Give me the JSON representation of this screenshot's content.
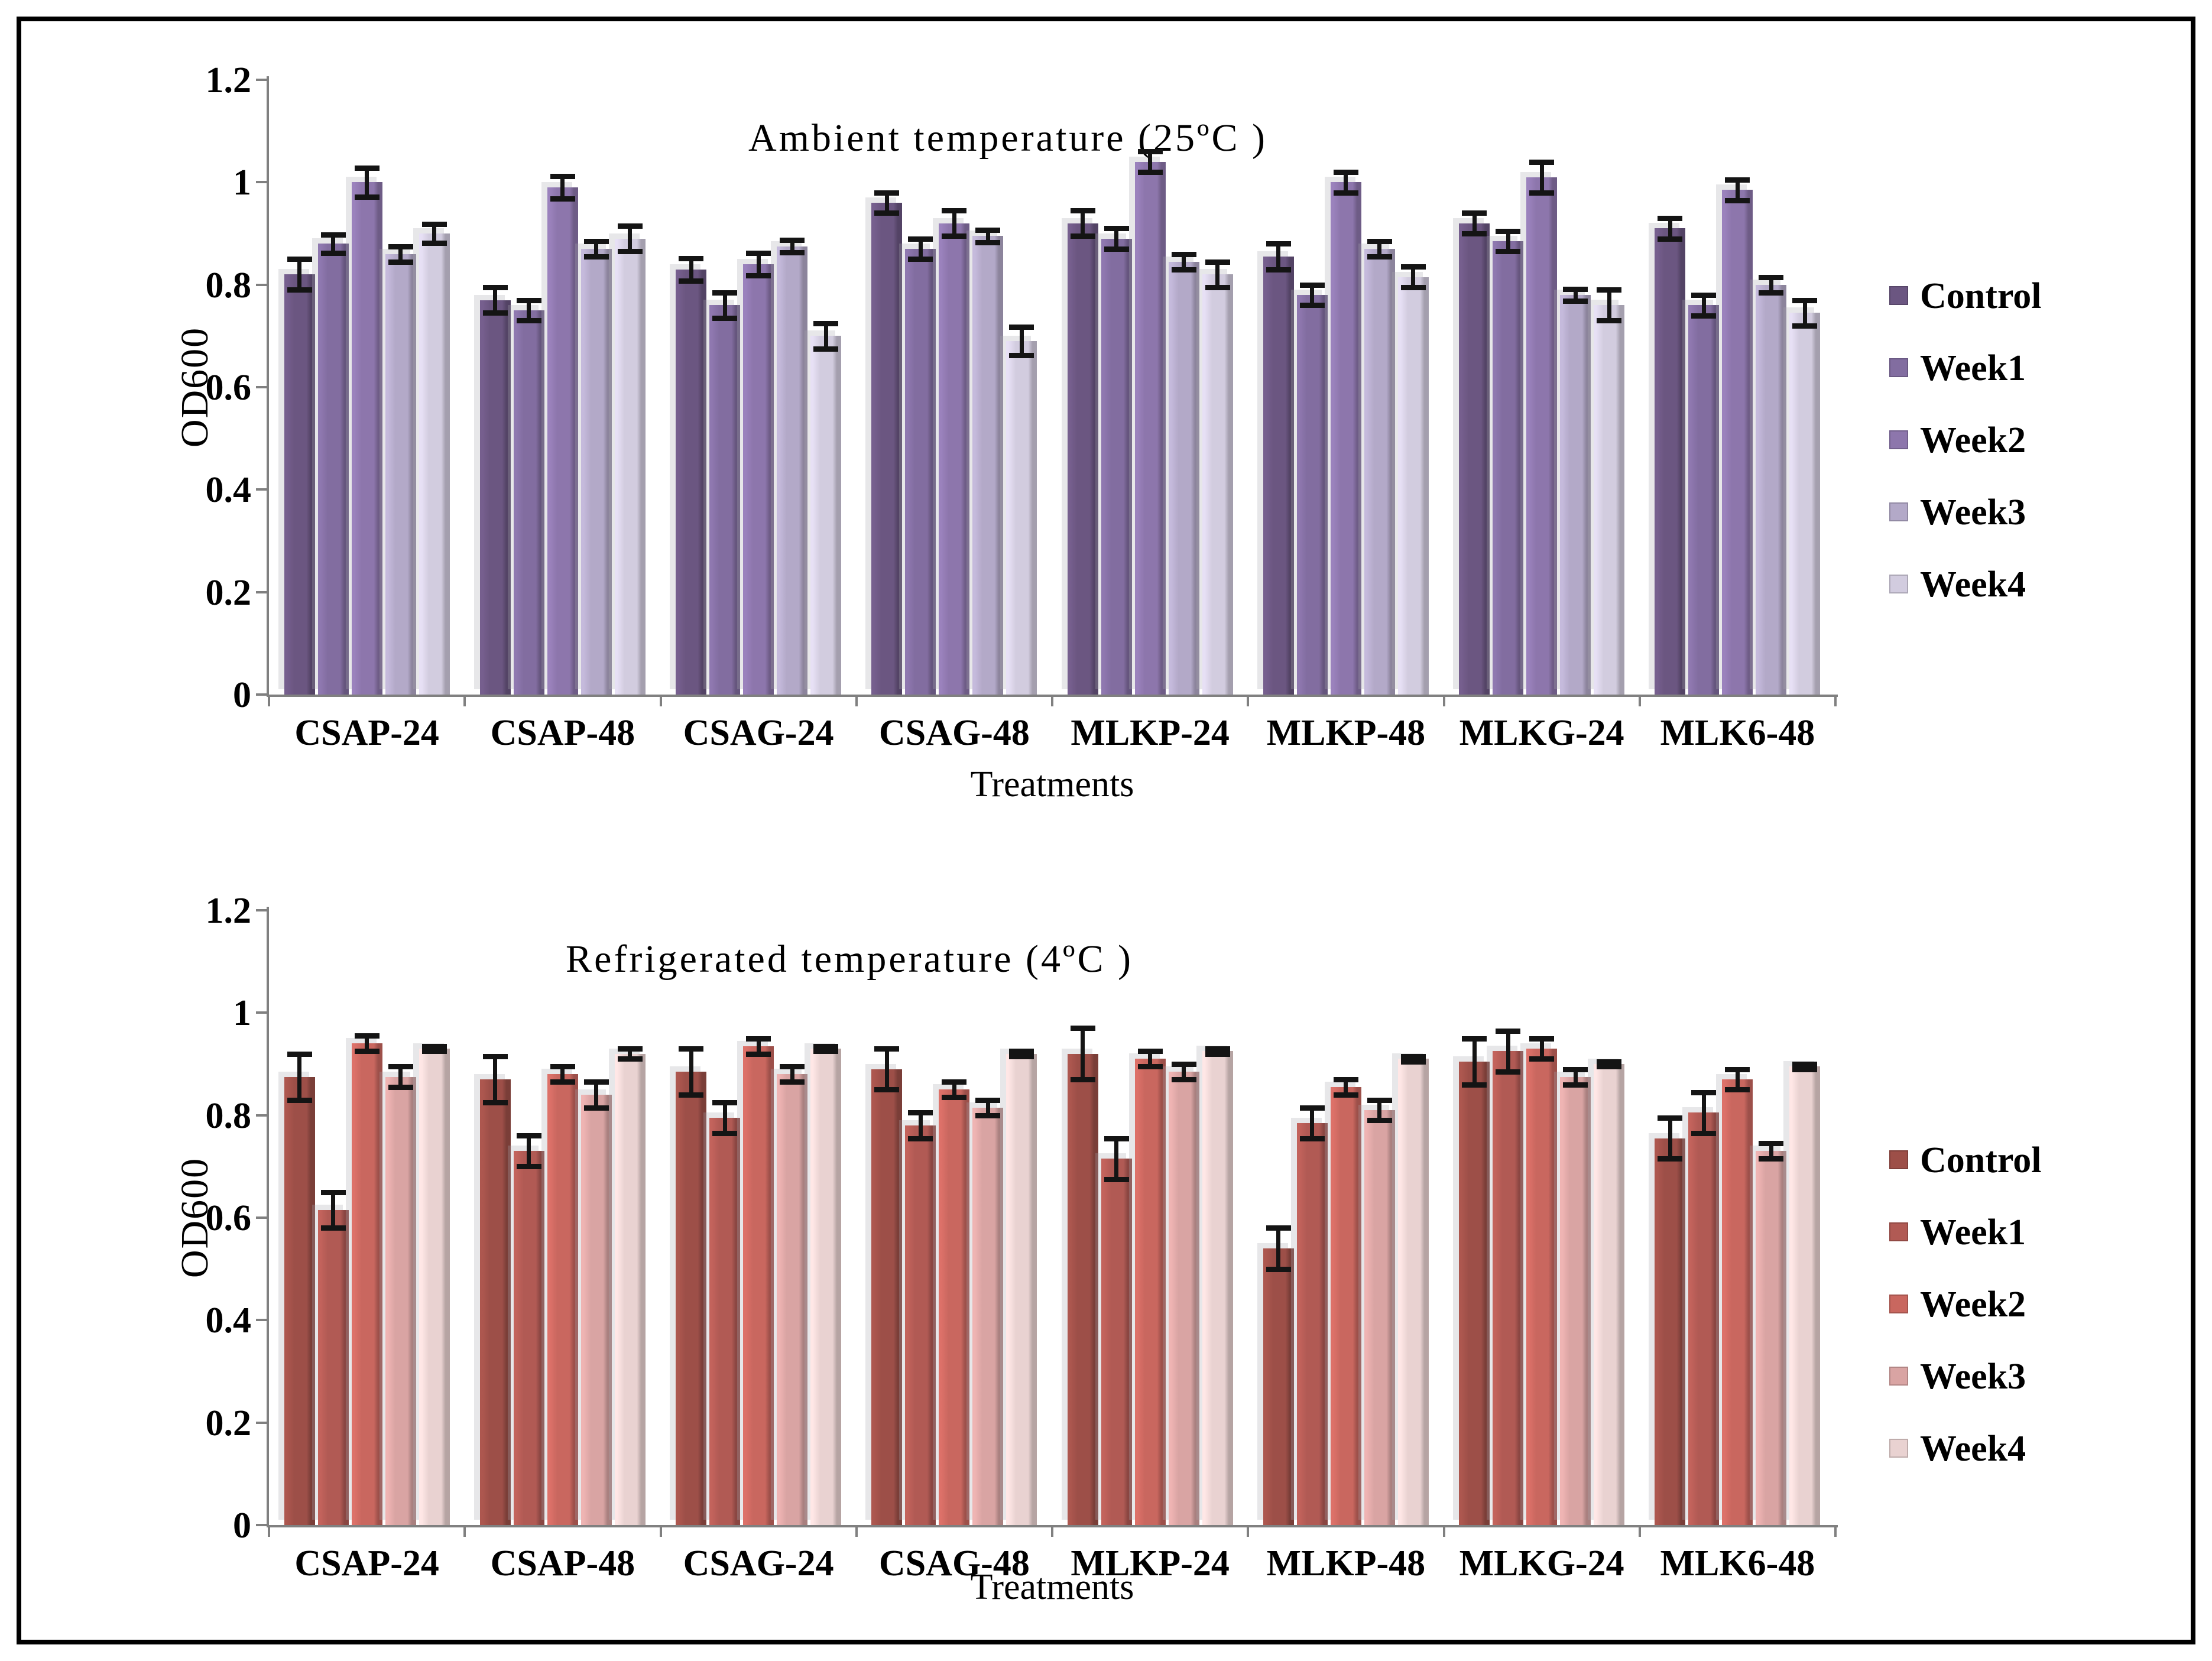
{
  "page": {
    "background": "#ffffff",
    "border_color": "#000000"
  },
  "chart_data": [
    {
      "type": "bar",
      "title": "Ambient temperature (25ºC )",
      "xlabel": "Treatments",
      "ylabel": "OD600",
      "ylim": [
        0,
        1.2
      ],
      "yticks": [
        "0",
        "0.2",
        "0.4",
        "0.6",
        "0.8",
        "1",
        "1.2"
      ],
      "ytick_values": [
        0,
        0.2,
        0.4,
        0.6,
        0.8,
        1,
        1.2
      ],
      "grid": false,
      "legend_position": "right",
      "axis_color": "#808080",
      "error_bar_color": "#141414",
      "categories": [
        "CSAP-24",
        "CSAP-48",
        "CSAG-24",
        "CSAG-48",
        "MLKP-24",
        "MLKP-48",
        "MLKG-24",
        "MLK6-48"
      ],
      "series": [
        {
          "name": "Control",
          "color": "#6b5681",
          "values": [
            0.82,
            0.77,
            0.83,
            0.96,
            0.92,
            0.855,
            0.92,
            0.91
          ],
          "errors": [
            0.03,
            0.025,
            0.022,
            0.02,
            0.025,
            0.025,
            0.02,
            0.02
          ]
        },
        {
          "name": "Week1",
          "color": "#826da0",
          "values": [
            0.88,
            0.75,
            0.76,
            0.87,
            0.89,
            0.78,
            0.885,
            0.76
          ],
          "errors": [
            0.018,
            0.02,
            0.025,
            0.02,
            0.02,
            0.02,
            0.02,
            0.02
          ]
        },
        {
          "name": "Week2",
          "color": "#8d76ac",
          "values": [
            1.0,
            0.99,
            0.84,
            0.92,
            1.04,
            1.0,
            1.01,
            0.985
          ],
          "errors": [
            0.028,
            0.022,
            0.022,
            0.025,
            0.02,
            0.02,
            0.03,
            0.02
          ]
        },
        {
          "name": "Week3",
          "color": "#b3a9c8",
          "values": [
            0.86,
            0.87,
            0.875,
            0.895,
            0.845,
            0.87,
            0.78,
            0.8
          ],
          "errors": [
            0.015,
            0.015,
            0.012,
            0.012,
            0.015,
            0.015,
            0.012,
            0.015
          ]
        },
        {
          "name": "Week4",
          "color": "#d2ccdf",
          "values": [
            0.9,
            0.89,
            0.7,
            0.69,
            0.82,
            0.815,
            0.76,
            0.745
          ],
          "errors": [
            0.018,
            0.025,
            0.025,
            0.028,
            0.025,
            0.02,
            0.03,
            0.025
          ]
        }
      ]
    },
    {
      "type": "bar",
      "title": "Refrigerated temperature (4ºC )",
      "xlabel": "Treatments",
      "ylabel": "OD600",
      "ylim": [
        0,
        1.2
      ],
      "yticks": [
        "0",
        "0.2",
        "0.4",
        "0.6",
        "0.8",
        "1",
        "1.2"
      ],
      "ytick_values": [
        0,
        0.2,
        0.4,
        0.6,
        0.8,
        1,
        1.2
      ],
      "grid": false,
      "legend_position": "right",
      "axis_color": "#808080",
      "error_bar_color": "#141414",
      "categories": [
        "CSAP-24",
        "CSAP-48",
        "CSAG-24",
        "CSAG-48",
        "MLKP-24",
        "MLKP-48",
        "MLKG-24",
        "MLK6-48"
      ],
      "series": [
        {
          "name": "Control",
          "color": "#9d4f48",
          "values": [
            0.875,
            0.87,
            0.885,
            0.89,
            0.92,
            0.54,
            0.905,
            0.755
          ],
          "errors": [
            0.045,
            0.045,
            0.045,
            0.04,
            0.05,
            0.04,
            0.045,
            0.04
          ]
        },
        {
          "name": "Week1",
          "color": "#b15a54",
          "values": [
            0.615,
            0.73,
            0.795,
            0.78,
            0.715,
            0.785,
            0.925,
            0.805
          ],
          "errors": [
            0.035,
            0.03,
            0.03,
            0.025,
            0.04,
            0.03,
            0.04,
            0.04
          ]
        },
        {
          "name": "Week2",
          "color": "#c9675f",
          "values": [
            0.94,
            0.88,
            0.935,
            0.85,
            0.91,
            0.855,
            0.93,
            0.87
          ],
          "errors": [
            0.015,
            0.015,
            0.015,
            0.015,
            0.015,
            0.015,
            0.02,
            0.02
          ]
        },
        {
          "name": "Week3",
          "color": "#d9a4a3",
          "values": [
            0.875,
            0.84,
            0.88,
            0.815,
            0.885,
            0.81,
            0.875,
            0.73
          ],
          "errors": [
            0.02,
            0.025,
            0.015,
            0.015,
            0.015,
            0.02,
            0.015,
            0.015
          ]
        },
        {
          "name": "Week4",
          "color": "#e9d2d1",
          "values": [
            0.93,
            0.92,
            0.93,
            0.92,
            0.925,
            0.91,
            0.9,
            0.895
          ],
          "errors": [
            0.005,
            0.01,
            0.005,
            0.005,
            0.005,
            0.005,
            0.005,
            0.005
          ]
        }
      ]
    }
  ]
}
